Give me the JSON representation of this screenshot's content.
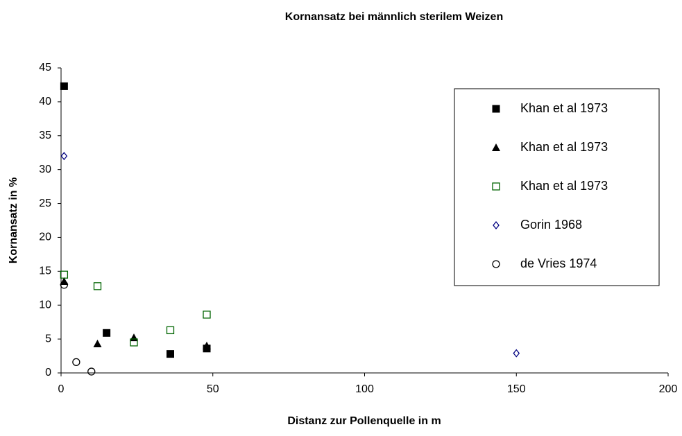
{
  "chart_data": {
    "type": "scatter",
    "title": "Kornansatz bei männlich sterilem Weizen",
    "xlabel": "Distanz zur Pollenquelle in m",
    "ylabel": "Kornansatz in %",
    "xlim": [
      0,
      200
    ],
    "xticks": [
      0,
      50,
      100,
      150,
      200
    ],
    "ylim": [
      0,
      45
    ],
    "yticks": [
      0,
      5,
      10,
      15,
      20,
      25,
      30,
      35,
      40,
      45
    ],
    "grid": false,
    "legend": "upper right",
    "series": [
      {
        "name": "Khan et al 1973",
        "color": "#000000",
        "marker": "square-filled",
        "x": [
          1,
          15,
          36,
          48
        ],
        "values": [
          42.3,
          5.9,
          2.8,
          3.6
        ]
      },
      {
        "name": "Khan et al 1973",
        "color": "#000000",
        "marker": "triangle-filled",
        "x": [
          1,
          12,
          24,
          48
        ],
        "values": [
          13.5,
          4.3,
          5.2,
          4.0
        ]
      },
      {
        "name": "Khan et al 1973",
        "color": "#006400",
        "marker": "square-open",
        "x": [
          1,
          12,
          24,
          36,
          48
        ],
        "values": [
          14.5,
          12.8,
          4.5,
          6.3,
          8.6
        ]
      },
      {
        "name": "Gorin 1968",
        "color": "#000080",
        "marker": "diamond-open",
        "x": [
          1,
          150
        ],
        "values": [
          32,
          2.9
        ]
      },
      {
        "name": "de Vries 1974",
        "color": "#000000",
        "marker": "circle-open",
        "x": [
          1,
          5,
          10
        ],
        "values": [
          13,
          1.6,
          0.2
        ]
      }
    ]
  }
}
